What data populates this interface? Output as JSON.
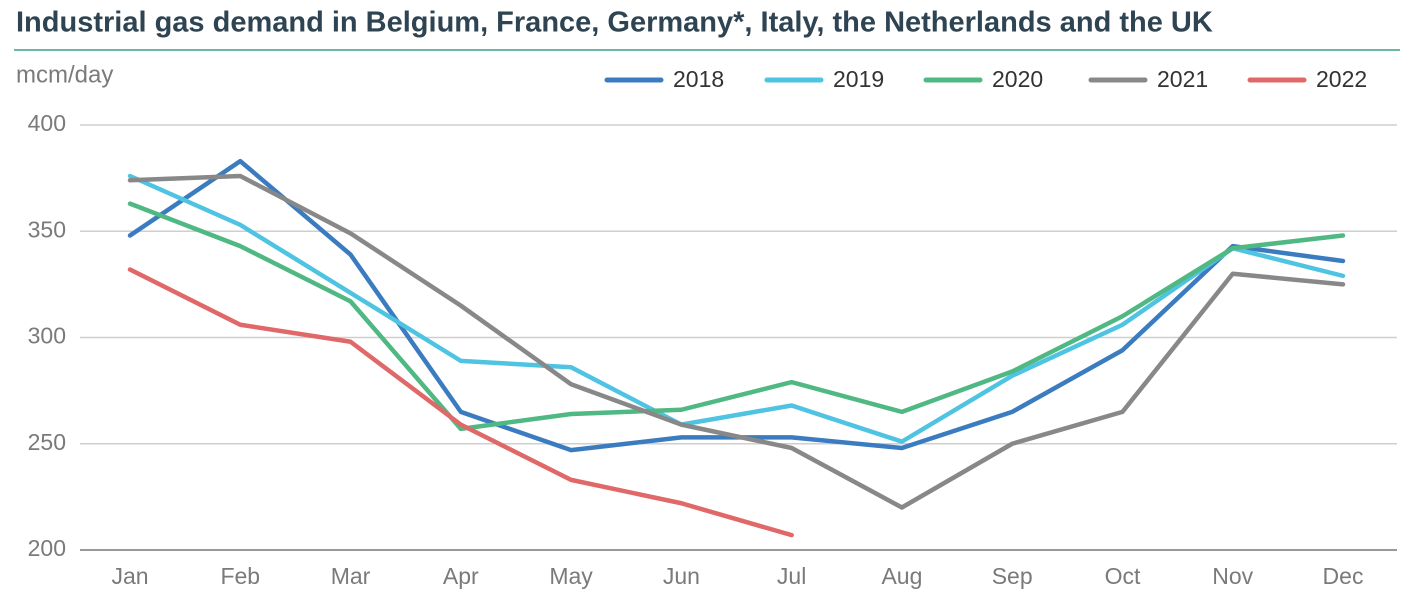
{
  "chart_data": {
    "type": "line",
    "title": "Industrial gas demand in Belgium, France, Germany*, Italy, the Netherlands and the UK",
    "y_label": "mcm/day",
    "categories": [
      "Jan",
      "Feb",
      "Mar",
      "Apr",
      "May",
      "Jun",
      "Jul",
      "Aug",
      "Sep",
      "Oct",
      "Nov",
      "Dec"
    ],
    "ylim": [
      200,
      400
    ],
    "yticks": [
      200,
      250,
      300,
      350,
      400
    ],
    "grid": true,
    "legend": "top-right",
    "series": [
      {
        "name": "2018",
        "color": "#3b7cc0",
        "values": [
          348,
          383,
          339,
          265,
          247,
          253,
          253,
          248,
          265,
          294,
          343,
          336
        ]
      },
      {
        "name": "2019",
        "color": "#4fc3e2",
        "values": [
          376,
          353,
          321,
          289,
          286,
          259,
          268,
          251,
          282,
          306,
          342,
          329
        ]
      },
      {
        "name": "2020",
        "color": "#4fb883",
        "values": [
          363,
          343,
          317,
          257,
          264,
          266,
          279,
          265,
          284,
          310,
          342,
          348
        ]
      },
      {
        "name": "2021",
        "color": "#888888",
        "values": [
          374,
          376,
          349,
          315,
          278,
          259,
          248,
          220,
          250,
          265,
          330,
          325
        ]
      },
      {
        "name": "2022",
        "color": "#e06868",
        "values": [
          332,
          306,
          298,
          259,
          233,
          222,
          207,
          null,
          null,
          null,
          null,
          null
        ]
      }
    ]
  }
}
